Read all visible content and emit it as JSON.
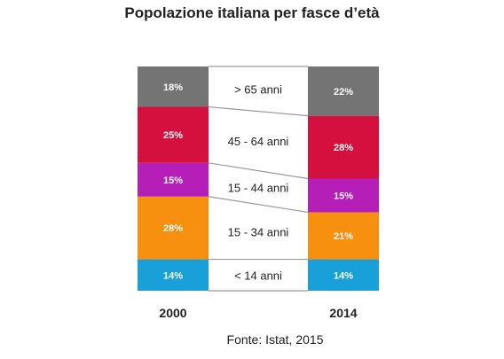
{
  "chart_data": {
    "type": "bar",
    "stacked": true,
    "percent_stacked": true,
    "title": "Popolazione italiana per fasce d’età",
    "source": "Fonte: Istat, 2015",
    "categories": [
      "2000",
      "2014"
    ],
    "series": [
      {
        "name": "< 14 anni",
        "values": [
          14,
          14
        ],
        "labels": [
          "14%",
          "14%"
        ],
        "color": "#1aa0d8"
      },
      {
        "name": "15 - 34 anni",
        "values": [
          28,
          21
        ],
        "labels": [
          "28%",
          "21%"
        ],
        "color": "#f7900f"
      },
      {
        "name": "15 - 44 anni",
        "values": [
          15,
          15
        ],
        "labels": [
          "15%",
          "15%"
        ],
        "color": "#b51fb8"
      },
      {
        "name": "45 - 64 anni",
        "values": [
          25,
          28
        ],
        "labels": [
          "25%",
          "28%"
        ],
        "color": "#d3103e"
      },
      {
        "name": "> 65 anni",
        "values": [
          18,
          22
        ],
        "labels": [
          "18%",
          "22%"
        ],
        "color": "#747474"
      }
    ],
    "legend_placement": "between-bars",
    "connector_color": "#9a9a9a",
    "value_label_color": "#ffffff",
    "grid": false,
    "ylim": [
      0,
      100
    ]
  }
}
